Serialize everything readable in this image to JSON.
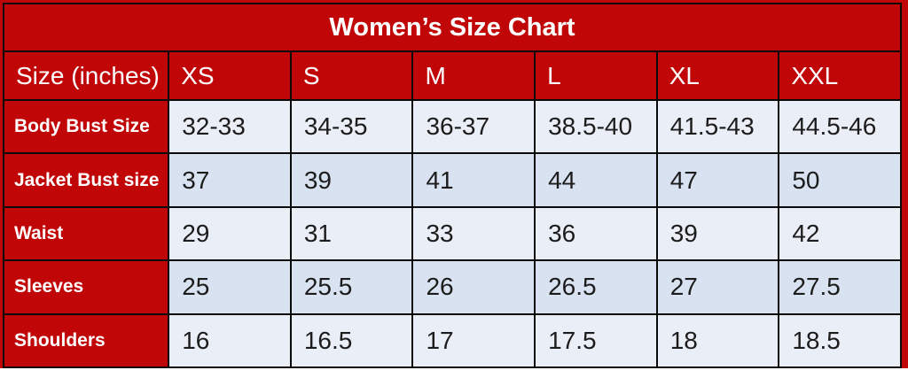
{
  "title": "Women’s Size Chart",
  "header": {
    "label": "Size (inches)",
    "columns": [
      "XS",
      "S",
      "M",
      "L",
      "XL",
      "XXL"
    ]
  },
  "rows": [
    {
      "label": "Body Bust Size",
      "values": [
        "32-33",
        "34-35",
        "36-37",
        "38.5-40",
        "41.5-43",
        "44.5-46"
      ]
    },
    {
      "label": "Jacket Bust size",
      "values": [
        "37",
        "39",
        "41",
        "44",
        "47",
        "50"
      ]
    },
    {
      "label": "Waist",
      "values": [
        "29",
        "31",
        "33",
        "36",
        "39",
        "42"
      ]
    },
    {
      "label": "Sleeves",
      "values": [
        "25",
        "25.5",
        "26",
        "26.5",
        "27",
        "27.5"
      ]
    },
    {
      "label": "Shoulders",
      "values": [
        "16",
        "16.5",
        "17",
        "17.5",
        "18",
        "18.5"
      ]
    }
  ],
  "colors": {
    "accent_red": "#c00606",
    "row_light": "#eaeef6",
    "row_shaded": "#d9e2f0",
    "grid_line": "#0a0a0a",
    "header_text": "#ffffff",
    "data_text": "#1c1c1c"
  }
}
